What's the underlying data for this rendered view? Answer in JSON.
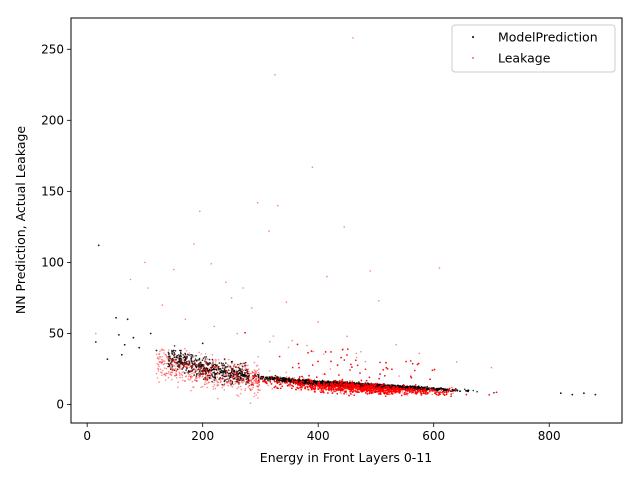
{
  "chart_data": {
    "type": "scatter",
    "title": "",
    "xlabel": "Energy in Front Layers 0-11",
    "ylabel": "NN Prediction, Actual Leakage",
    "xlim": [
      -28,
      926
    ],
    "ylim": [
      -13,
      272
    ],
    "x_ticks": [
      0,
      200,
      400,
      600,
      800
    ],
    "y_ticks": [
      0,
      50,
      100,
      150,
      200,
      250
    ],
    "grid": false,
    "legend_position": "top-right",
    "series": [
      {
        "name": "ModelPrediction",
        "color": "#000000",
        "marker": "dot",
        "trend": {
          "x": [
            15,
            50,
            100,
            150,
            200,
            250,
            300,
            350,
            400,
            450,
            500,
            550,
            600,
            650,
            700,
            750,
            800,
            880
          ],
          "y": [
            44,
            40,
            36,
            32,
            26,
            22,
            19,
            17,
            15,
            14,
            13,
            12,
            11,
            10,
            9,
            8.5,
            8,
            7.5
          ]
        },
        "points": [
          [
            20,
            112
          ],
          [
            15,
            44
          ],
          [
            35,
            32
          ],
          [
            50,
            61
          ],
          [
            55,
            49
          ],
          [
            60,
            35
          ],
          [
            70,
            60
          ],
          [
            65,
            42
          ],
          [
            80,
            47
          ],
          [
            90,
            40
          ],
          [
            110,
            50
          ],
          [
            120,
            38
          ],
          [
            150,
            38
          ],
          [
            160,
            30
          ],
          [
            180,
            35
          ],
          [
            200,
            43
          ],
          [
            230,
            25
          ],
          [
            250,
            30
          ],
          [
            270,
            20
          ],
          [
            300,
            18
          ],
          [
            880,
            7
          ],
          [
            860,
            8
          ],
          [
            840,
            7
          ],
          [
            820,
            8
          ]
        ]
      },
      {
        "name": "Leakage",
        "color": "#ff0000",
        "marker": "dot",
        "trend": {
          "x": [
            100,
            150,
            200,
            250,
            300,
            350,
            400,
            450,
            500,
            550,
            600,
            650,
            700,
            750,
            800,
            860
          ],
          "y": [
            30,
            27,
            24,
            20,
            17,
            15,
            13,
            12,
            11,
            10,
            9,
            8.5,
            8,
            7.5,
            7,
            6.5
          ]
        },
        "points": [
          [
            460,
            258
          ],
          [
            325,
            232
          ],
          [
            390,
            167
          ],
          [
            295,
            142
          ],
          [
            330,
            140
          ],
          [
            195,
            136
          ],
          [
            315,
            122
          ],
          [
            445,
            125
          ],
          [
            185,
            113
          ],
          [
            215,
            99
          ],
          [
            150,
            95
          ],
          [
            100,
            100
          ],
          [
            105,
            82
          ],
          [
            415,
            90
          ],
          [
            490,
            94
          ],
          [
            610,
            96
          ],
          [
            250,
            75
          ],
          [
            285,
            68
          ],
          [
            345,
            72
          ],
          [
            505,
            73
          ],
          [
            240,
            86
          ],
          [
            270,
            82
          ],
          [
            15,
            50
          ],
          [
            75,
            88
          ],
          [
            130,
            70
          ],
          [
            170,
            60
          ],
          [
            220,
            55
          ],
          [
            260,
            50
          ],
          [
            355,
            45
          ],
          [
            400,
            58
          ],
          [
            450,
            48
          ],
          [
            535,
            42
          ],
          [
            575,
            36
          ],
          [
            640,
            30
          ],
          [
            700,
            26
          ]
        ]
      }
    ]
  }
}
